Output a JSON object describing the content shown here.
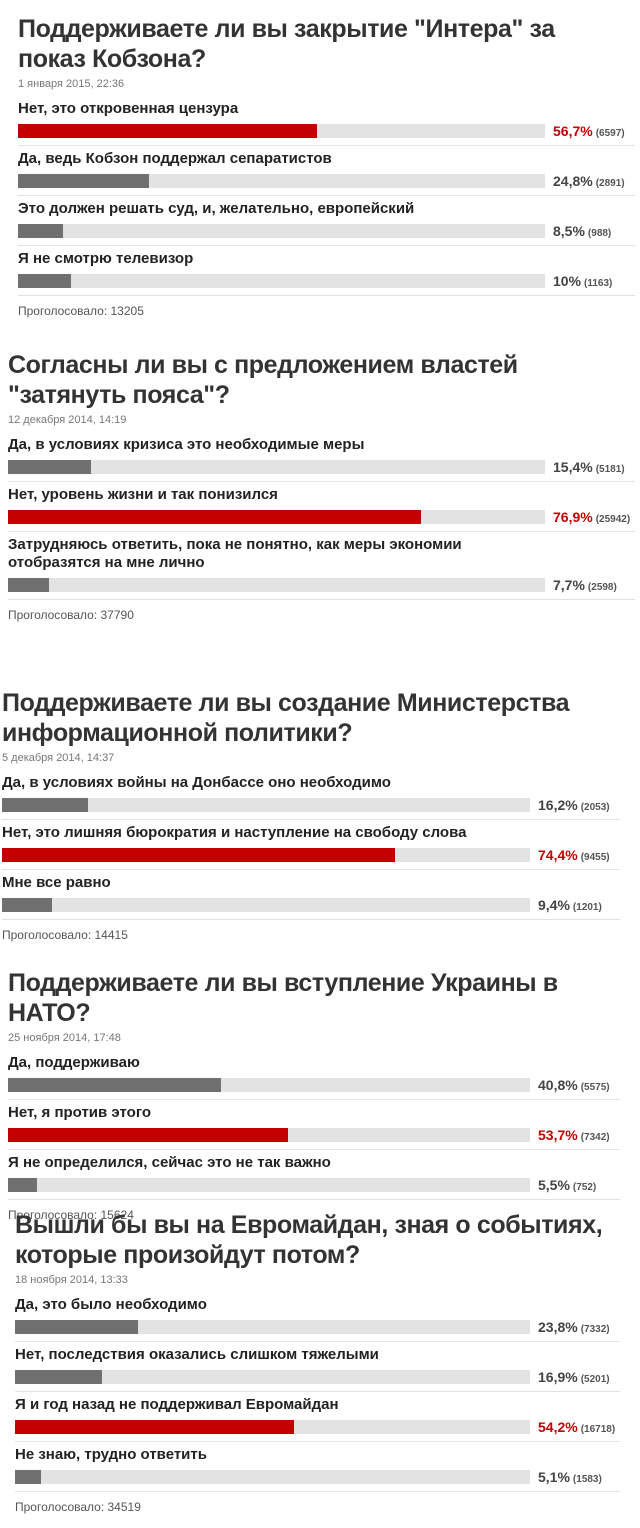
{
  "polls": [
    {
      "title": "Поддерживаете ли вы закрытие \"Интера\" за показ Кобзона?",
      "date": "1 января 2015, 22:36",
      "options": [
        {
          "label": "Нет, это откровенная цензура",
          "value": 56.7,
          "value_label": "56,7%",
          "count": "(6597)",
          "color": "#c40000"
        },
        {
          "label": "Да, ведь Кобзон поддержал сепаратистов",
          "value": 24.8,
          "value_label": "24,8%",
          "count": "(2891)",
          "color": "#707070"
        },
        {
          "label": "Это должен решать суд, и, желательно, европейский",
          "value": 8.5,
          "value_label": "8,5%",
          "count": "(988)",
          "color": "#707070"
        },
        {
          "label": "Я не смотрю телевизор",
          "value": 10,
          "value_label": "10%",
          "count": "(1163)",
          "color": "#707070"
        }
      ],
      "total": "Проголосовало: 13205"
    },
    {
      "title": "Согласны ли вы с предложением властей \"затянуть пояса\"?",
      "date": "12 декабря 2014, 14:19",
      "options": [
        {
          "label": "Да, в условиях кризиса это необходимые меры",
          "value": 15.4,
          "value_label": "15,4%",
          "count": "(5181)",
          "color": "#707070"
        },
        {
          "label": "Нет, уровень жизни и так понизился",
          "value": 76.9,
          "value_label": "76,9%",
          "count": "(25942)",
          "color": "#c40000"
        },
        {
          "label": "Затрудняюсь ответить, пока не понятно, как меры экономии отобразятся на мне лично",
          "value": 7.7,
          "value_label": "7,7%",
          "count": "(2598)",
          "color": "#707070"
        }
      ],
      "total": "Проголосовало: 37790"
    },
    {
      "title": "Поддерживаете ли вы создание Министерства информационной политики?",
      "date": "5 декабря 2014, 14:37",
      "options": [
        {
          "label": "Да, в условиях войны на Донбассе оно необходимо",
          "value": 16.2,
          "value_label": "16,2%",
          "count": "(2053)",
          "color": "#707070"
        },
        {
          "label": "Нет, это лишняя бюрократия и наступление на свободу слова",
          "value": 74.4,
          "value_label": "74,4%",
          "count": "(9455)",
          "color": "#c40000"
        },
        {
          "label": "Мне все равно",
          "value": 9.4,
          "value_label": "9,4%",
          "count": "(1201)",
          "color": "#707070"
        }
      ],
      "total": "Проголосовало: 14415"
    },
    {
      "title": "Поддерживаете ли вы вступление Украины в НАТО?",
      "date": "25 ноября 2014, 17:48",
      "options": [
        {
          "label": "Да, поддерживаю",
          "value": 40.8,
          "value_label": "40,8%",
          "count": "(5575)",
          "color": "#707070"
        },
        {
          "label": "Нет, я против этого",
          "value": 53.7,
          "value_label": "53,7%",
          "count": "(7342)",
          "color": "#c40000"
        },
        {
          "label": "Я не определился, сейчас это не так важно",
          "value": 5.5,
          "value_label": "5,5%",
          "count": "(752)",
          "color": "#707070"
        }
      ],
      "total": "Проголосовало: 15624"
    },
    {
      "title": "Вышли бы вы на Евромайдан, зная о событиях, которые произойдут потом?",
      "date": "18 ноября 2014, 13:33",
      "options": [
        {
          "label": "Да, это было необходимо",
          "value": 23.8,
          "value_label": "23,8%",
          "count": "(7332)",
          "color": "#707070"
        },
        {
          "label": "Нет, последствия оказались слишком тяжелыми",
          "value": 16.9,
          "value_label": "16,9%",
          "count": "(5201)",
          "color": "#707070"
        },
        {
          "label": "Я и год назад не поддерживал Евромайдан",
          "value": 54.2,
          "value_label": "54,2%",
          "count": "(16718)",
          "color": "#c40000"
        },
        {
          "label": "Не знаю, трудно ответить",
          "value": 5.1,
          "value_label": "5,1%",
          "count": "(1583)",
          "color": "#707070"
        }
      ],
      "total": "Проголосовало: 34519"
    }
  ]
}
